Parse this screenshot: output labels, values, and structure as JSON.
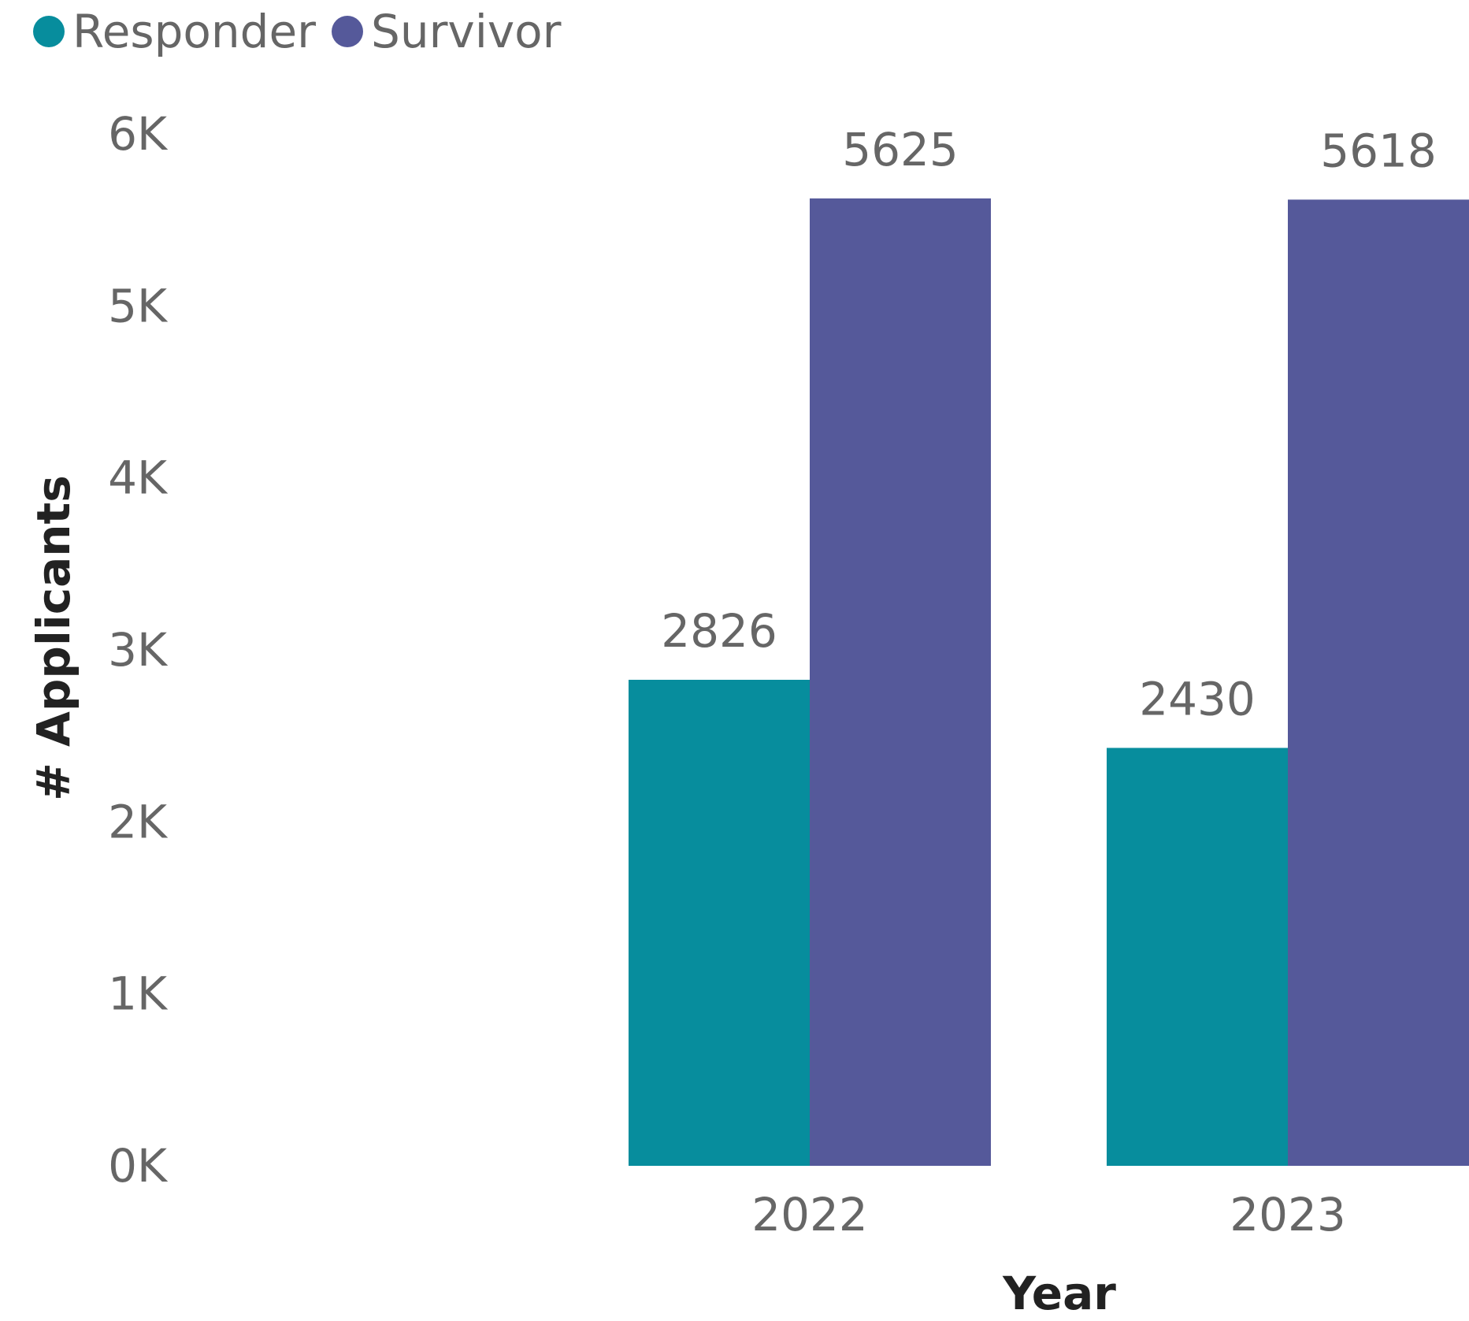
{
  "chart_data": {
    "type": "bar",
    "categories": [
      "2022",
      "2023"
    ],
    "series": [
      {
        "name": "Responder",
        "values": [
          2826,
          2430
        ],
        "color": "#078D9D"
      },
      {
        "name": "Survivor",
        "values": [
          5625,
          5618
        ],
        "color": "#55599A"
      }
    ],
    "xlabel": "Year",
    "ylabel": "# Applicants",
    "ylim": [
      0,
      6000
    ],
    "yticks": [
      0,
      1000,
      2000,
      3000,
      4000,
      5000,
      6000
    ],
    "ytick_labels": [
      "0K",
      "1K",
      "2K",
      "3K",
      "4K",
      "5K",
      "6K"
    ],
    "data_labels": [
      [
        "2826",
        "2430"
      ],
      [
        "5625",
        "5618"
      ]
    ],
    "legend_position": "top-left",
    "grid": false
  }
}
